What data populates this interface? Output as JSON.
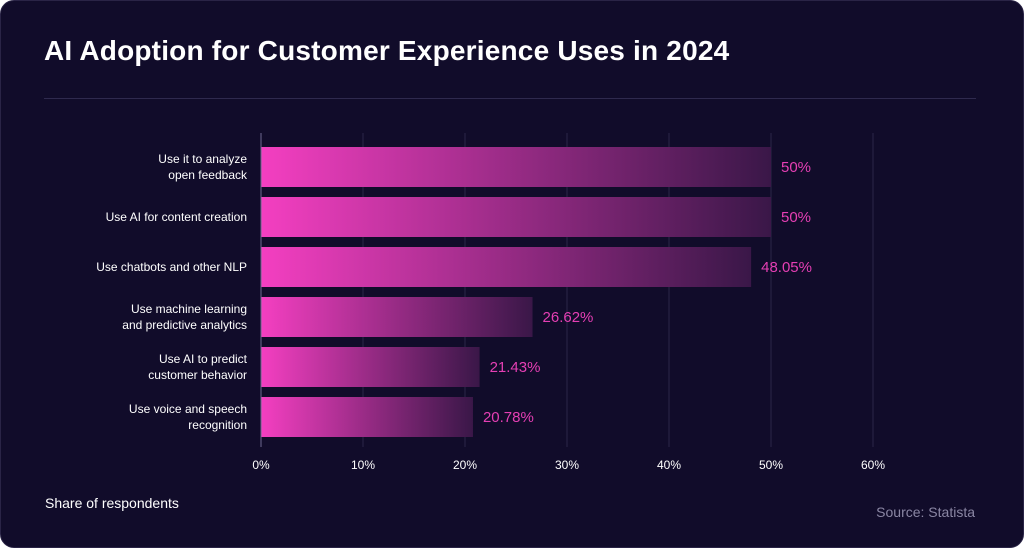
{
  "title": "AI Adoption for Customer Experience Uses in 2024",
  "axis_note": "Share of respondents",
  "source": "Source: Statista",
  "colors": {
    "background": "#110c2a",
    "bar_start": "#f43fc1",
    "bar_end": "#3a1748",
    "value_label": "#e53fb4",
    "grid": "#2b2648",
    "text": "#ffffff"
  },
  "chart_data": {
    "type": "bar",
    "orientation": "horizontal",
    "categories": [
      [
        "Use it to analyze",
        "open feedback"
      ],
      [
        "Use AI for content creation"
      ],
      [
        "Use chatbots and other NLP"
      ],
      [
        "Use machine learning",
        "and predictive analytics"
      ],
      [
        "Use AI to predict",
        "customer behavior"
      ],
      [
        "Use voice and speech",
        "recognition"
      ]
    ],
    "values": [
      50,
      50,
      48.05,
      26.62,
      21.43,
      20.78
    ],
    "value_labels": [
      "50%",
      "50%",
      "48.05%",
      "26.62%",
      "21.43%",
      "20.78%"
    ],
    "xticks": [
      0,
      10,
      20,
      30,
      40,
      50,
      60
    ],
    "xtick_labels": [
      "0%",
      "10%",
      "20%",
      "30%",
      "40%",
      "50%",
      "60%"
    ],
    "xlim": [
      0,
      60
    ],
    "xlabel": "Share of respondents",
    "grid": true
  }
}
